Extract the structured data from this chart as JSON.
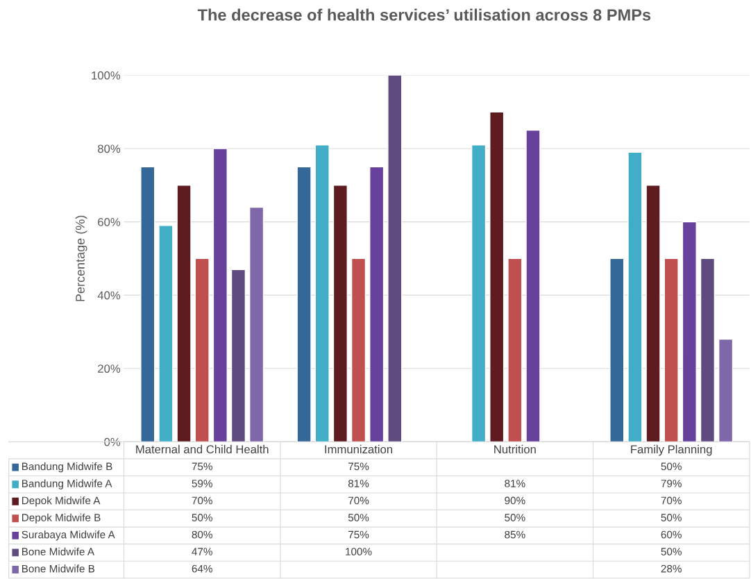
{
  "chart_data": {
    "type": "bar",
    "title": "The decrease of health services’ utilisation across 8 PMPs",
    "ylabel": "Percentage (%)",
    "categories": [
      "Maternal and Child Health",
      "Immunization",
      "Nutrition",
      "Family Planning"
    ],
    "series": [
      {
        "name": "Bandung Midwife B",
        "color": "#346898",
        "values": [
          75,
          75,
          null,
          50
        ],
        "value_labels": [
          "75%",
          "75%",
          null,
          "50%"
        ]
      },
      {
        "name": "Bandung Midwife A",
        "color": "#41adc7",
        "values": [
          59,
          81,
          81,
          79
        ],
        "value_labels": [
          "59%",
          "81%",
          "81%",
          "79%"
        ]
      },
      {
        "name": "Depok Midwife A",
        "color": "#5e1c21",
        "values": [
          70,
          70,
          90,
          70
        ],
        "value_labels": [
          "70%",
          "70%",
          "90%",
          "70%"
        ]
      },
      {
        "name": "Depok Midwife B",
        "color": "#c0504f",
        "values": [
          50,
          50,
          50,
          50
        ],
        "value_labels": [
          "50%",
          "50%",
          "50%",
          "50%"
        ]
      },
      {
        "name": "Surabaya Midwife A",
        "color": "#67419b",
        "values": [
          80,
          75,
          85,
          60
        ],
        "value_labels": [
          "80%",
          "75%",
          "85%",
          "60%"
        ]
      },
      {
        "name": "Bone Midwife A",
        "color": "#5f4b7d",
        "values": [
          47,
          100,
          null,
          50
        ],
        "value_labels": [
          "47%",
          "100%",
          null,
          "50%"
        ]
      },
      {
        "name": "Bone Midwife B",
        "color": "#7f68aa",
        "values": [
          64,
          null,
          null,
          28
        ],
        "value_labels": [
          "64%",
          null,
          null,
          "28%"
        ]
      }
    ],
    "ylim": [
      0,
      100
    ],
    "yticks": [
      {
        "value": 0,
        "label": "0%"
      },
      {
        "value": 20,
        "label": "20%"
      },
      {
        "value": 40,
        "label": "40%"
      },
      {
        "value": 60,
        "label": "60%"
      },
      {
        "value": 80,
        "label": "80%"
      },
      {
        "value": 100,
        "label": "100%"
      }
    ],
    "grid": "y",
    "legend": "bottom"
  }
}
